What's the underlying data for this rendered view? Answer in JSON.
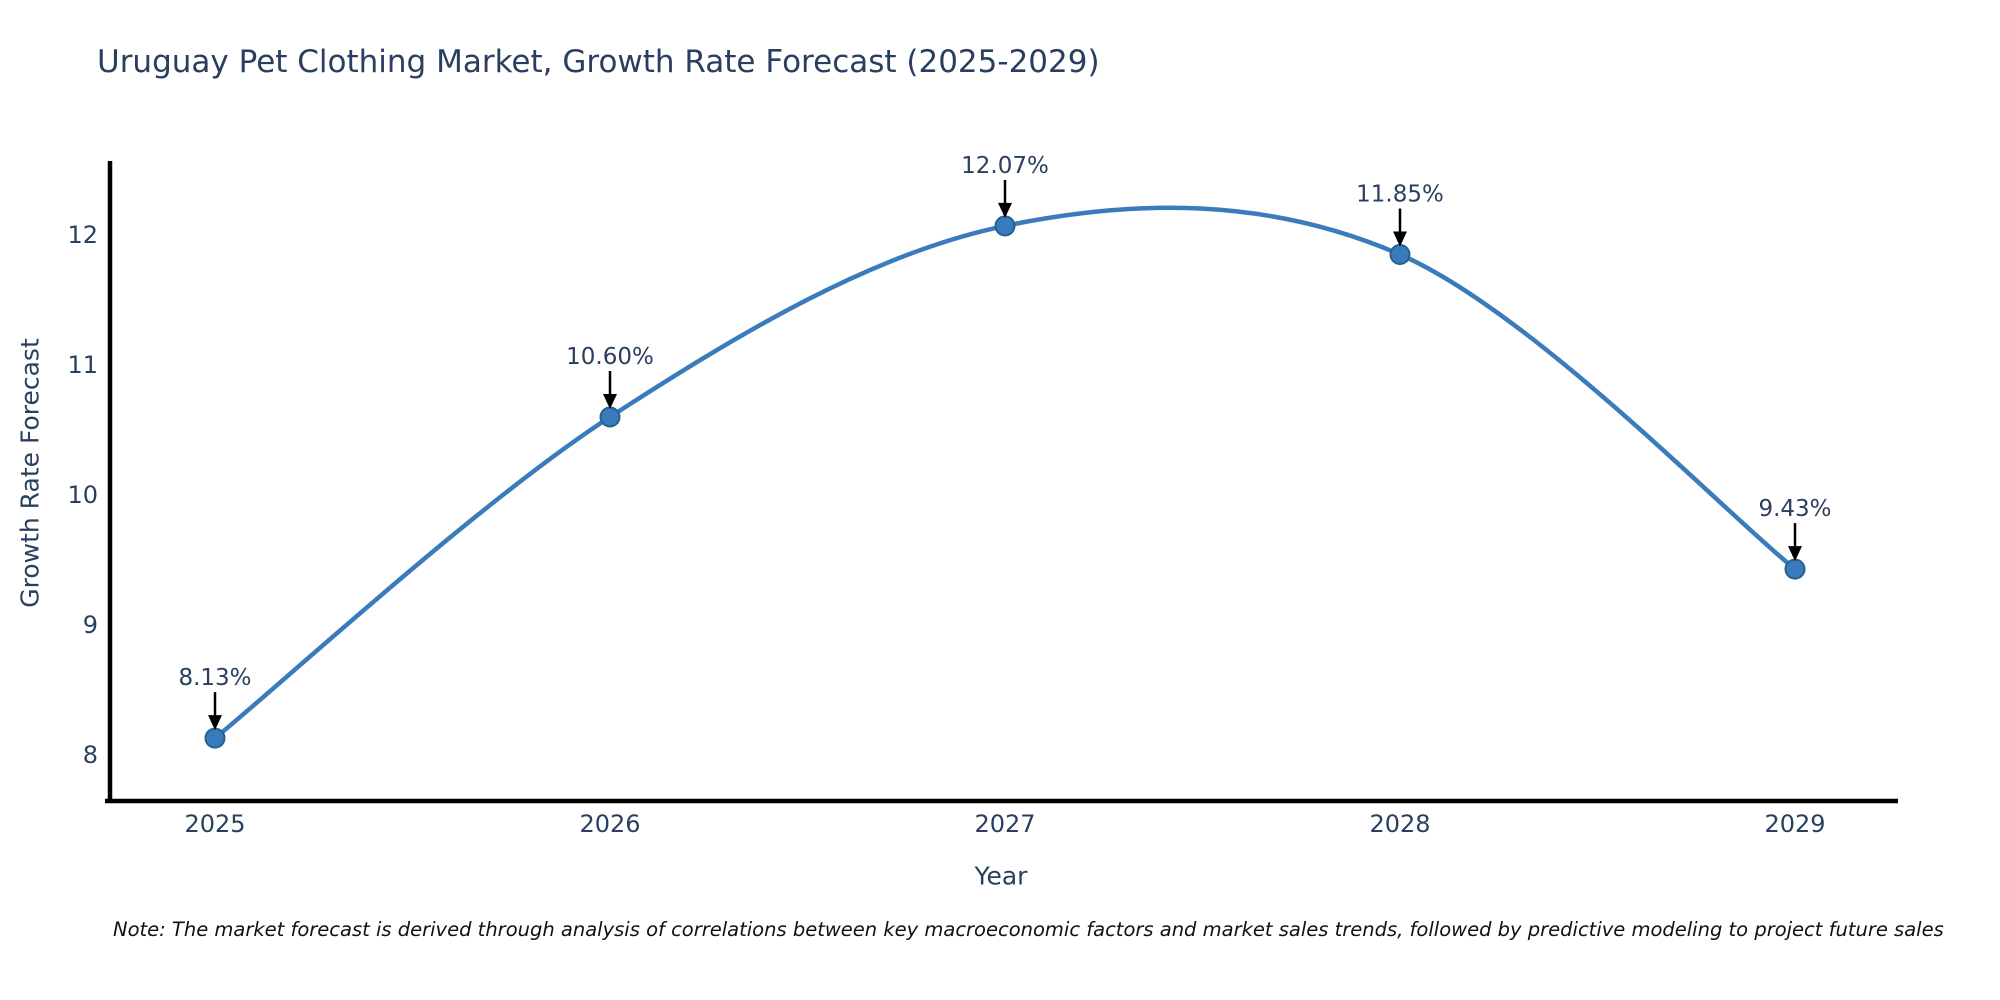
{
  "chart_data": {
    "type": "line",
    "title": "Uruguay Pet Clothing Market, Growth Rate Forecast (2025-2029)",
    "xlabel": "Year",
    "ylabel": "Growth Rate Forecast",
    "x": [
      "2025",
      "2026",
      "2027",
      "2028",
      "2029"
    ],
    "series": [
      {
        "name": "Growth Rate Forecast",
        "values": [
          8.13,
          10.6,
          12.07,
          11.85,
          9.43
        ]
      }
    ],
    "point_labels": [
      "8.13%",
      "10.60%",
      "12.07%",
      "11.85%",
      "9.43%"
    ],
    "yticks": [
      8,
      9,
      10,
      11,
      12
    ],
    "ylim": [
      7.65,
      12.6
    ],
    "grid": false,
    "legend_position": "none",
    "line_style": "spline",
    "colors": {
      "line": "#3a7cbb",
      "marker_fill": "#3a7cbb",
      "marker_edge": "#24618f",
      "axis": "#000000",
      "text": "#2a3f5f",
      "annotation_arrow": "#000000"
    },
    "note": "Note: The market forecast is derived through analysis of correlations between key macroeconomic factors and market sales trends, followed by predictive modeling to project future sales"
  }
}
